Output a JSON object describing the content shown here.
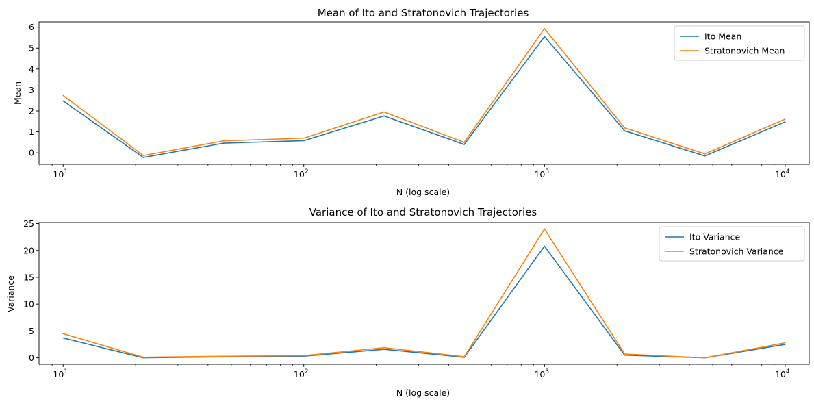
{
  "colors": {
    "ito": "#1f77b4",
    "stratonovich": "#ff7f0e"
  },
  "chart_data": [
    {
      "type": "line",
      "title": "Mean of Ito and Stratonovich Trajectories",
      "xlabel": "N (log scale)",
      "ylabel": "Mean",
      "xscale": "log",
      "xlim": [
        7.94,
        12590
      ],
      "ylim": [
        -0.55,
        6.25
      ],
      "x": [
        10,
        21.54,
        46.42,
        100,
        215.44,
        464.16,
        1000,
        2154.43,
        4641.59,
        10000
      ],
      "x_ticks": [
        10,
        100,
        1000,
        10000
      ],
      "x_tick_labels": [
        "10^1",
        "10^2",
        "10^3",
        "10^4"
      ],
      "y_ticks": [
        0,
        1,
        2,
        3,
        4,
        5,
        6
      ],
      "y_tick_labels": [
        "0",
        "1",
        "2",
        "3",
        "4",
        "5",
        "6"
      ],
      "grid": false,
      "legend": "top-right",
      "series": [
        {
          "name": "Ito Mean",
          "color": "#1f77b4",
          "values": [
            2.48,
            -0.22,
            0.46,
            0.58,
            1.76,
            0.4,
            5.55,
            1.05,
            -0.15,
            1.48
          ]
        },
        {
          "name": "Stratonovich Mean",
          "color": "#ff7f0e",
          "values": [
            2.74,
            -0.13,
            0.57,
            0.7,
            1.95,
            0.5,
            5.93,
            1.19,
            -0.05,
            1.61
          ]
        }
      ]
    },
    {
      "type": "line",
      "title": "Variance of Ito and Stratonovich Trajectories",
      "xlabel": "N (log scale)",
      "ylabel": "Variance",
      "xscale": "log",
      "xlim": [
        7.94,
        12590
      ],
      "ylim": [
        -1.2,
        25.2
      ],
      "x": [
        10,
        21.54,
        46.42,
        100,
        215.44,
        464.16,
        1000,
        2154.43,
        4641.59,
        10000
      ],
      "x_ticks": [
        10,
        100,
        1000,
        10000
      ],
      "x_tick_labels": [
        "10^1",
        "10^2",
        "10^3",
        "10^4"
      ],
      "y_ticks": [
        0,
        5,
        10,
        15,
        20,
        25
      ],
      "y_tick_labels": [
        "0",
        "5",
        "10",
        "15",
        "20",
        "25"
      ],
      "grid": false,
      "legend": "top-right",
      "series": [
        {
          "name": "Ito Variance",
          "color": "#1f77b4",
          "values": [
            3.7,
            0.0,
            0.2,
            0.3,
            1.6,
            0.1,
            20.8,
            0.5,
            0.0,
            2.5
          ]
        },
        {
          "name": "Stratonovich Variance",
          "color": "#ff7f0e",
          "values": [
            4.5,
            0.1,
            0.3,
            0.4,
            1.9,
            0.2,
            24.0,
            0.7,
            0.0,
            2.8
          ]
        }
      ]
    }
  ]
}
